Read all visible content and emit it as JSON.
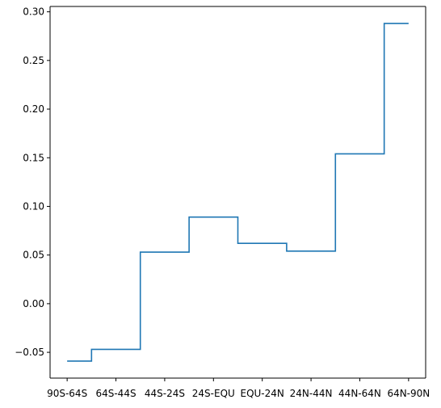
{
  "chart_data": {
    "type": "line",
    "step": "mid",
    "categories": [
      "90S-64S",
      "64S-44S",
      "44S-24S",
      "24S-EQU",
      "EQU-24N",
      "24N-44N",
      "44N-64N",
      "64N-90N"
    ],
    "values": [
      -0.059,
      -0.047,
      0.053,
      0.089,
      0.062,
      0.054,
      0.154,
      0.288
    ],
    "yticks": [
      -0.05,
      0.0,
      0.05,
      0.1,
      0.15,
      0.2,
      0.25,
      0.3
    ],
    "ylim": [
      -0.0765,
      0.3055
    ],
    "xlim": [
      -0.35,
      7.35
    ],
    "title": "",
    "xlabel": "",
    "ylabel": "",
    "grid": false,
    "legend": "none",
    "colors": {
      "line": "#1f77b4",
      "axes": "#000000",
      "background": "#ffffff"
    }
  }
}
